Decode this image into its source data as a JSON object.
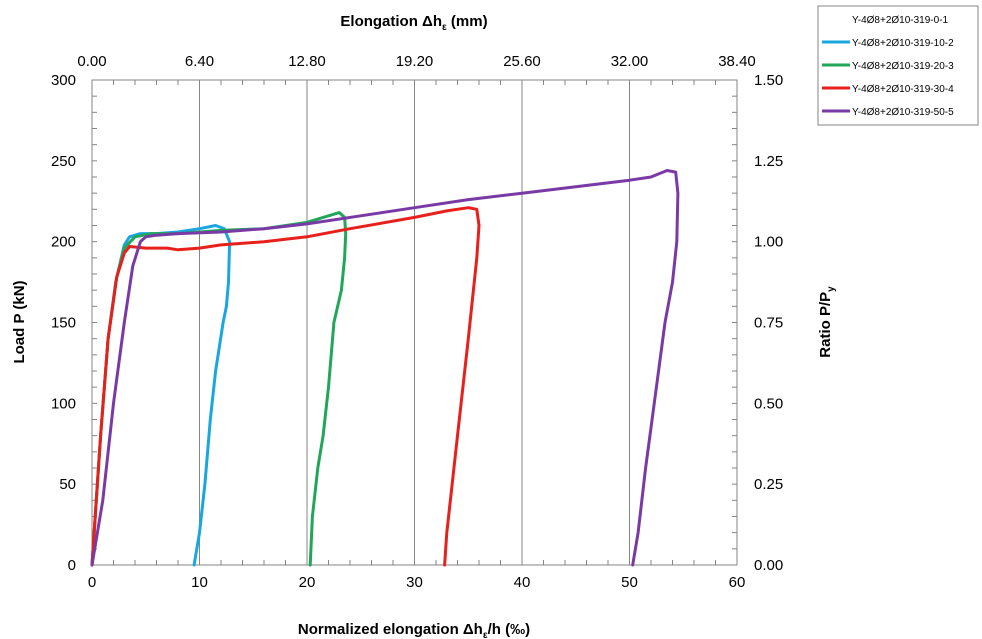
{
  "chart_data": {
    "type": "line",
    "x_bottom": {
      "label": "Normalized elongation Δh",
      "label_sub": "ε",
      "label_suffix": "/h (‰)",
      "ticks": [
        "0",
        "10",
        "20",
        "30",
        "40",
        "50",
        "60"
      ],
      "lim": [
        0,
        60
      ]
    },
    "x_top": {
      "label": "Elongation Δh",
      "label_sub": "ε",
      "label_suffix": " (mm)",
      "ticks": [
        "0.00",
        "6.40",
        "12.80",
        "19.20",
        "25.60",
        "32.00",
        "38.40"
      ],
      "lim": [
        0,
        38.4
      ]
    },
    "y_left": {
      "label": "Load P (kN)",
      "ticks": [
        "0",
        "50",
        "100",
        "150",
        "200",
        "250",
        "300"
      ],
      "lim": [
        0,
        300
      ]
    },
    "y_right": {
      "label": "Ratio P/P",
      "label_sub": "y",
      "ticks": [
        "0.00",
        "0.25",
        "0.50",
        "0.75",
        "1.00",
        "1.25",
        "1.50"
      ],
      "lim": [
        0,
        1.5
      ]
    },
    "grid": "vertical-major",
    "legend_position": "top-right-outside",
    "series": [
      {
        "name": "Y-4Ø8+2Ø10-319-0-1",
        "color": "#ffffff",
        "x": [],
        "y": []
      },
      {
        "name": "Y-4Ø8+2Ø10-319-10-2",
        "color": "#1aa7e0",
        "x": [
          0,
          0.8,
          1.5,
          2.2,
          3,
          3.5,
          4.5,
          6,
          8,
          10,
          11.5,
          12.3,
          12.8,
          12.7,
          12.5,
          12.2,
          11.5,
          11,
          10.5,
          10,
          9.5
        ],
        "y": [
          0,
          80,
          140,
          175,
          198,
          203,
          205,
          205,
          206,
          208,
          210,
          208,
          200,
          175,
          160,
          150,
          120,
          90,
          50,
          20,
          0
        ]
      },
      {
        "name": "Y-4Ø8+2Ø10-319-20-3",
        "color": "#21a65a",
        "x": [
          0,
          0.8,
          1.5,
          2.3,
          3,
          4,
          5.5,
          8,
          12,
          16,
          20,
          22,
          23,
          23.5,
          23.6,
          23.5,
          23.2,
          22.5,
          22,
          21.5,
          21,
          20.5,
          20.3
        ],
        "y": [
          0,
          80,
          140,
          178,
          196,
          203,
          205,
          205,
          207,
          208,
          212,
          216,
          218,
          215,
          205,
          190,
          170,
          150,
          110,
          80,
          60,
          30,
          0
        ]
      },
      {
        "name": "Y-4Ø8+2Ø10-319-30-4",
        "color": "#e8201c",
        "x": [
          0,
          0.8,
          1.5,
          2.3,
          3,
          3.5,
          5,
          7,
          8,
          10,
          12,
          16,
          20,
          24,
          30,
          33,
          35,
          35.8,
          36,
          35.8,
          35,
          34,
          33,
          32.8
        ],
        "y": [
          0,
          80,
          140,
          178,
          193,
          197,
          196,
          196,
          195,
          196,
          198,
          200,
          203,
          208,
          215,
          219,
          221,
          220,
          210,
          190,
          140,
          80,
          20,
          0
        ]
      },
      {
        "name": "Y-4Ø8+2Ø10-319-50-5",
        "color": "#7a3aa6",
        "x": [
          0,
          1,
          2,
          3,
          3.8,
          4.5,
          5,
          6,
          8,
          12,
          16,
          20,
          25,
          30,
          35,
          40,
          45,
          50,
          52,
          53.5,
          54.3,
          54.5,
          54.4,
          54,
          53.3,
          52.5,
          51.5,
          50.8,
          50.3
        ],
        "y": [
          0,
          40,
          100,
          150,
          185,
          200,
          203,
          204,
          205,
          206,
          208,
          211,
          216,
          221,
          226,
          230,
          234,
          238,
          240,
          244,
          243,
          230,
          200,
          175,
          150,
          110,
          60,
          20,
          0
        ]
      }
    ]
  }
}
